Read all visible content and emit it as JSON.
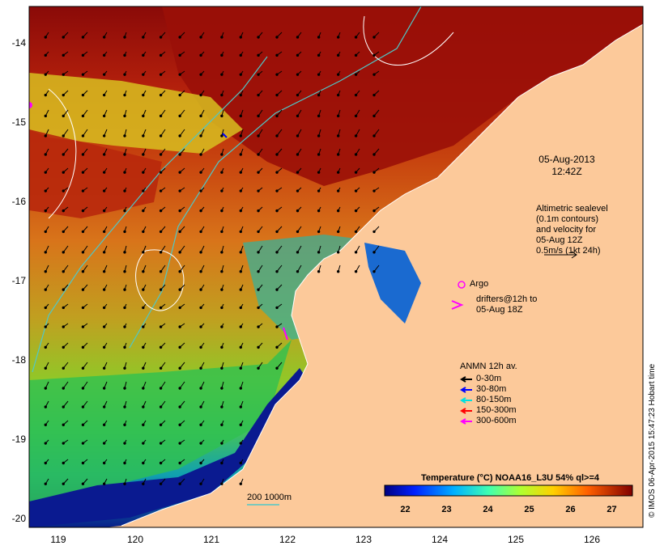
{
  "axes": {
    "lat_ticks": [
      "-14",
      "-15",
      "-16",
      "-17",
      "-18",
      "-19",
      "-20"
    ],
    "lon_ticks": [
      "119",
      "120",
      "121",
      "122",
      "123",
      "124",
      "125",
      "126"
    ],
    "lat_range": [
      -20.1,
      -13.4
    ],
    "lon_range": [
      118.65,
      126.7
    ]
  },
  "annotations": {
    "date_line1": "05-Aug-2013",
    "date_line2": "12:42Z",
    "altimetry": [
      "Altimetric sealevel",
      "(0.1m contours)",
      "and velocity for",
      "05-Aug 12Z",
      "0.5m/s (1kt 24h)"
    ],
    "argo_label": "Argo",
    "drifters": [
      "drifters@12h to",
      "05-Aug 18Z"
    ],
    "isobath_label": "200 1000m"
  },
  "anmn_legend": {
    "title": "ANMN 12h av.",
    "items": [
      {
        "label": "0-30m",
        "color": "#000000"
      },
      {
        "label": "30-80m",
        "color": "#0000ff"
      },
      {
        "label": "80-150m",
        "color": "#00e0e0"
      },
      {
        "label": "150-300m",
        "color": "#ff0000"
      },
      {
        "label": "300-600m",
        "color": "#ff00ff"
      }
    ]
  },
  "colorbar": {
    "title": "Temperature (°C) NOAA16_L3U 54% ql>=4",
    "ticks": [
      "22",
      "23",
      "24",
      "25",
      "26",
      "27"
    ],
    "range": [
      21.5,
      27.5
    ]
  },
  "credit": "© IMOS 06-Apr-2015 15:47:23 Hobart time",
  "colors": {
    "land": "#fcc99a",
    "warm": "#a01010",
    "mid": "#e07a10",
    "cool": "#70d030",
    "cold": "#0a1a90",
    "isobath": "#4fc8c8",
    "contour": "#ffffff"
  }
}
